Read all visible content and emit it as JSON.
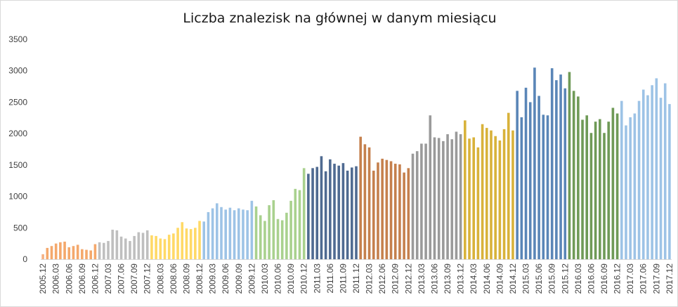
{
  "chart_data": {
    "type": "bar",
    "title": "Liczba znalezisk na głównej w danym miesiącu",
    "xlabel": "",
    "ylabel": "",
    "ylim": [
      0,
      3500
    ],
    "yticks": [
      "0",
      "500",
      "1000",
      "1500",
      "2000",
      "2500",
      "3000",
      "3500"
    ],
    "grid": false,
    "legend": "none",
    "x_tick_labels": [
      "2005.12",
      "2006.03",
      "2006.06",
      "2006.09",
      "2006.12",
      "2007.03",
      "2007.06",
      "2007.09",
      "2007.12",
      "2008.03",
      "2008.06",
      "2008.09",
      "2008.12",
      "2009.03",
      "2009.06",
      "2009.09",
      "2009.12",
      "2010.03",
      "2010.06",
      "2010.09",
      "2010.12",
      "2011.03",
      "2011.06",
      "2011.09",
      "2011.12",
      "2012.03",
      "2012.06",
      "2012.09",
      "2012.12",
      "2013.03",
      "2013.06",
      "2013.09",
      "2013.12",
      "2014.03",
      "2014.06",
      "2014.09",
      "2014.12",
      "2015.03",
      "2015.06",
      "2015.09",
      "2015.12",
      "2016.03",
      "2016.06",
      "2016.09",
      "2016.12",
      "2017.03",
      "2017.06",
      "2017.09",
      "2017.12"
    ],
    "year_colors": {
      "2005": "#f4b183",
      "2006": "#f4a86c",
      "2007": "#bfbfbf",
      "2008": "#ffd966",
      "2009": "#9dc3e6",
      "2010": "#a9d18e",
      "2011": "#4f6a91",
      "2012": "#c5804d",
      "2013": "#9a9a9a",
      "2014": "#d8b23a",
      "2015": "#5a86b7",
      "2016": "#6f9a57",
      "2017": "#9dc3e6"
    },
    "series": [
      {
        "values": [
          80,
          180,
          210,
          250,
          270,
          280,
          190,
          210,
          230,
          160,
          150,
          140,
          240,
          270,
          260,
          290,
          470,
          460,
          360,
          330,
          290,
          370,
          430,
          420,
          460,
          380,
          370,
          330,
          320,
          390,
          410,
          500,
          590,
          490,
          480,
          500,
          610,
          600,
          750,
          810,
          890,
          830,
          790,
          820,
          780,
          810,
          790,
          780,
          930,
          840,
          700,
          610,
          860,
          940,
          640,
          620,
          740,
          930,
          1120,
          1100,
          1450,
          1360,
          1450,
          1470,
          1640,
          1400,
          1590,
          1520,
          1490,
          1530,
          1410,
          1460,
          1480,
          1950,
          1830,
          1780,
          1410,
          1540,
          1600,
          1580,
          1560,
          1520,
          1510,
          1380,
          1450,
          1680,
          1720,
          1840,
          1840,
          2290,
          1940,
          1930,
          1880,
          1990,
          1910,
          2030,
          1990,
          2210,
          1920,
          1940,
          1780,
          2150,
          2090,
          2050,
          1960,
          1890,
          2070,
          2330,
          2050,
          2680,
          2260,
          2730,
          2500,
          3050,
          2600,
          2300,
          2290,
          3040,
          2850,
          2940,
          2720,
          2980,
          2680,
          2590,
          2220,
          2290,
          2010,
          2190,
          2230,
          2010,
          2190,
          2410,
          2320,
          2520,
          2130,
          2260,
          2320,
          2520,
          2700,
          2610,
          2770,
          2880,
          2570,
          2800,
          2470
        ]
      }
    ]
  }
}
